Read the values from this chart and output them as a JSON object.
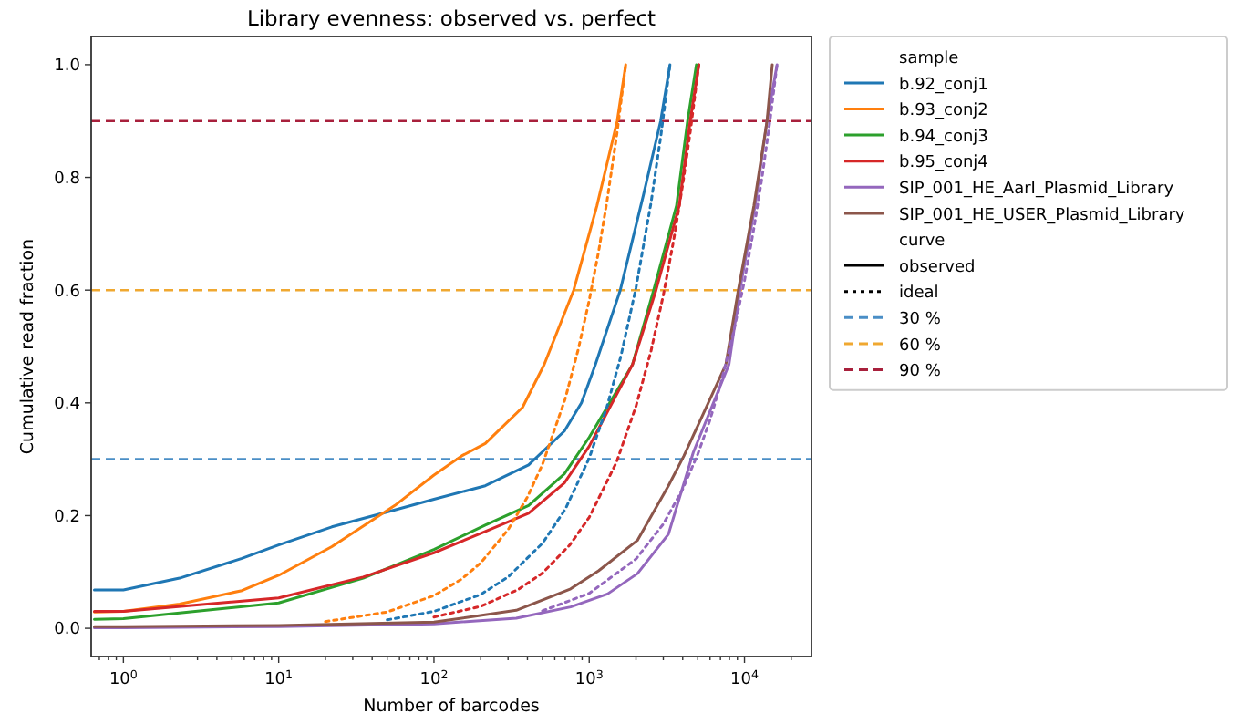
{
  "chart_data": {
    "type": "line",
    "title": "Library evenness: observed vs. perfect",
    "xlabel": "Number of barcodes",
    "ylabel": "Cumulative read fraction",
    "legend_title": "sample",
    "annotations": [
      "curve",
      "observed",
      "ideal"
    ],
    "log": "x",
    "grid": false,
    "legend": "right",
    "xlim": [
      0.62,
      27000
    ],
    "ylim": [
      -0.05,
      1.05
    ],
    "yticks": [
      {
        "value": 0,
        "label": "0.0"
      },
      {
        "value": 0.2,
        "label": "0.2"
      },
      {
        "value": 0.4,
        "label": "0.4"
      },
      {
        "value": 0.6,
        "label": "0.6"
      },
      {
        "value": 0.8,
        "label": "0.8"
      },
      {
        "value": 1,
        "label": "1.0"
      }
    ],
    "xticks": [
      {
        "value": 0.7,
        "label": null
      },
      {
        "value": 0.8,
        "label": null
      },
      {
        "value": 0.9,
        "label": null
      },
      {
        "value": 1,
        "label": "10$^{0}$"
      },
      {
        "value": 2,
        "label": null
      },
      {
        "value": 3,
        "label": null
      },
      {
        "value": 4,
        "label": null
      },
      {
        "value": 5,
        "label": null
      },
      {
        "value": 6,
        "label": null
      },
      {
        "value": 7,
        "label": null
      },
      {
        "value": 8,
        "label": null
      },
      {
        "value": 9,
        "label": null
      },
      {
        "value": 10,
        "label": "10$^{1}$"
      },
      {
        "value": 20,
        "label": null
      },
      {
        "value": 30,
        "label": null
      },
      {
        "value": 40,
        "label": null
      },
      {
        "value": 50,
        "label": null
      },
      {
        "value": 60,
        "label": null
      },
      {
        "value": 70,
        "label": null
      },
      {
        "value": 80,
        "label": null
      },
      {
        "value": 90,
        "label": null
      },
      {
        "value": 100,
        "label": "10$^{2}$"
      },
      {
        "value": 200,
        "label": null
      },
      {
        "value": 300,
        "label": null
      },
      {
        "value": 400,
        "label": null
      },
      {
        "value": 500,
        "label": null
      },
      {
        "value": 600,
        "label": null
      },
      {
        "value": 700,
        "label": null
      },
      {
        "value": 800,
        "label": null
      },
      {
        "value": 900,
        "label": null
      },
      {
        "value": 1000,
        "label": "10$^{3}$"
      },
      {
        "value": 2000,
        "label": null
      },
      {
        "value": 3000,
        "label": null
      },
      {
        "value": 4000,
        "label": null
      },
      {
        "value": 5000,
        "label": null
      },
      {
        "value": 6000,
        "label": null
      },
      {
        "value": 7000,
        "label": null
      },
      {
        "value": 8000,
        "label": null
      },
      {
        "value": 9000,
        "label": null
      },
      {
        "value": 10000,
        "label": "10$^{4}$"
      },
      {
        "value": 20000,
        "label": null
      }
    ],
    "ref_lines": [
      {
        "axis": "y",
        "value": 0.3,
        "label": "30 %",
        "color": "#4a8ec6",
        "line_style": "dashed"
      },
      {
        "axis": "y",
        "value": 0.6,
        "label": "60 %",
        "color": "#f0a830",
        "line_style": "dashed"
      },
      {
        "axis": "y",
        "value": 0.9,
        "label": "90 %",
        "color": "#a8203c",
        "line_style": "dashed"
      }
    ],
    "series": [
      {
        "name": "b.92_conj1",
        "color": "#1f77b4",
        "line_style": "solid",
        "x": [
          0.65,
          1,
          2.3,
          5.8,
          10,
          22,
          56,
          100,
          214,
          407,
          692,
          891,
          1096,
          1585,
          2239,
          2884,
          3311
        ],
        "values": [
          0.068,
          0.068,
          0.089,
          0.124,
          0.148,
          0.18,
          0.21,
          0.229,
          0.253,
          0.29,
          0.35,
          0.4,
          0.468,
          0.6,
          0.77,
          0.9,
          1.0
        ]
      },
      {
        "name": "b.93_conj2",
        "color": "#ff7f0e",
        "line_style": "solid",
        "x": [
          0.65,
          1,
          2.3,
          5.8,
          10,
          22,
          56,
          100,
          151,
          214,
          372,
          513,
          794,
          1122,
          1514,
          1718
        ],
        "values": [
          0.029,
          0.03,
          0.043,
          0.067,
          0.094,
          0.145,
          0.218,
          0.272,
          0.306,
          0.328,
          0.392,
          0.468,
          0.6,
          0.75,
          0.9,
          1.0
        ]
      },
      {
        "name": "b.94_conj3",
        "color": "#2ca02c",
        "line_style": "solid",
        "x": [
          0.65,
          1,
          10,
          35,
          100,
          214,
          407,
          692,
          1000,
          1900,
          2600,
          3650,
          4300,
          4900
        ],
        "values": [
          0.016,
          0.017,
          0.045,
          0.089,
          0.14,
          0.183,
          0.218,
          0.274,
          0.339,
          0.468,
          0.6,
          0.75,
          0.9,
          1.0
        ]
      },
      {
        "name": "b.95_conj4",
        "color": "#d62728",
        "line_style": "solid",
        "x": [
          0.65,
          1,
          10,
          35,
          100,
          214,
          407,
          692,
          1000,
          1900,
          2692,
          3800,
          4467,
          5080
        ],
        "values": [
          0.03,
          0.03,
          0.054,
          0.091,
          0.134,
          0.172,
          0.204,
          0.258,
          0.323,
          0.468,
          0.6,
          0.75,
          0.9,
          1.0
        ]
      },
      {
        "name": "SIP_001_HE_AarI_Plasmid_Library",
        "color": "#9467bd",
        "line_style": "solid",
        "x": [
          0.65,
          1,
          10,
          100,
          339,
          759,
          1312,
          2042,
          3236,
          4677,
          7943,
          9333,
          11700,
          13960,
          16200
        ],
        "values": [
          0.001,
          0.001,
          0.003,
          0.008,
          0.018,
          0.038,
          0.061,
          0.097,
          0.167,
          0.312,
          0.468,
          0.6,
          0.75,
          0.9,
          1.0
        ]
      },
      {
        "name": "SIP_001_HE_USER_Plasmid_Library",
        "color": "#8c564b",
        "line_style": "solid",
        "x": [
          0.65,
          1,
          10,
          100,
          339,
          759,
          1148,
          2042,
          3236,
          4074,
          7586,
          9120,
          11500,
          13960,
          15100
        ],
        "values": [
          0.003,
          0.003,
          0.005,
          0.011,
          0.032,
          0.07,
          0.102,
          0.156,
          0.253,
          0.306,
          0.468,
          0.6,
          0.75,
          0.9,
          1.0
        ]
      },
      {
        "color": "#ff7f0e",
        "line_style": "dotted",
        "x": [
          20,
          50,
          100,
          150,
          200,
          300,
          400,
          500,
          700,
          850,
          1000,
          1150,
          1300,
          1500,
          1718
        ],
        "values": [
          0.012,
          0.029,
          0.058,
          0.087,
          0.116,
          0.175,
          0.233,
          0.291,
          0.407,
          0.495,
          0.582,
          0.669,
          0.757,
          0.873,
          1.0
        ]
      },
      {
        "color": "#1f77b4",
        "line_style": "dotted",
        "x": [
          50,
          100,
          200,
          300,
          500,
          700,
          1000,
          1300,
          1600,
          2000,
          2500,
          2900,
          3311
        ],
        "values": [
          0.015,
          0.03,
          0.06,
          0.091,
          0.151,
          0.211,
          0.302,
          0.393,
          0.483,
          0.604,
          0.755,
          0.876,
          1.0
        ]
      },
      {
        "color": "#d62728",
        "line_style": "dotted",
        "x": [
          100,
          200,
          350,
          500,
          750,
          1000,
          1500,
          2000,
          2500,
          3000,
          3500,
          4000,
          4500,
          5080
        ],
        "values": [
          0.02,
          0.039,
          0.069,
          0.098,
          0.148,
          0.197,
          0.295,
          0.394,
          0.492,
          0.591,
          0.689,
          0.787,
          0.886,
          1.0
        ]
      },
      {
        "color": "#9467bd",
        "line_style": "dotted",
        "x": [
          500,
          1000,
          2000,
          3000,
          4000,
          5000,
          6000,
          7000,
          8500,
          10000,
          11500,
          13000,
          14500,
          16200
        ],
        "values": [
          0.031,
          0.062,
          0.123,
          0.185,
          0.247,
          0.309,
          0.37,
          0.432,
          0.525,
          0.617,
          0.71,
          0.802,
          0.895,
          1.0
        ]
      }
    ]
  }
}
